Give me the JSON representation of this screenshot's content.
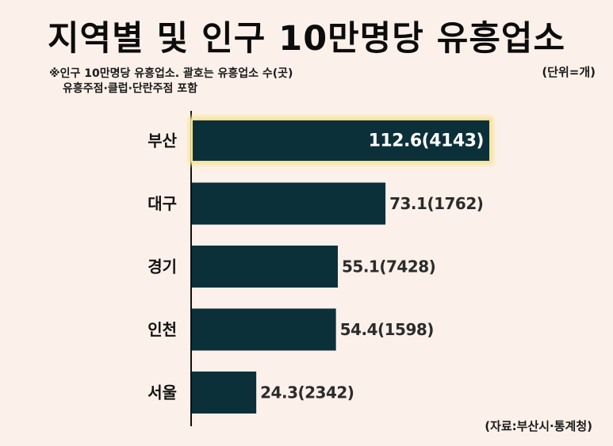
{
  "title": "지역별 및 인구 10만명당 유흥업소",
  "note_line1": "※인구 10만명당 유흥업소. 괄호는 유흥업소 수(곳)",
  "note_line2": "유흥주점·클럽·단란주점 포함",
  "unit": "(단위=개)",
  "source": "(자료:부산시·통계청)",
  "colors": {
    "bar": "#0c3039",
    "highlight": "#f7e39a",
    "background": "#fcf1ea"
  },
  "chart_data": {
    "type": "bar",
    "orientation": "horizontal",
    "categories": [
      "부산",
      "대구",
      "경기",
      "인천",
      "서울"
    ],
    "values": [
      112.6,
      73.1,
      55.1,
      54.4,
      24.3
    ],
    "counts": [
      4143,
      1762,
      7428,
      1598,
      2342
    ],
    "labels": [
      "112.6(4143)",
      "73.1(1762)",
      "55.1(7428)",
      "54.4(1598)",
      "24.3(2342)"
    ],
    "highlighted_category": "부산",
    "xlim": [
      0,
      112.6
    ]
  }
}
